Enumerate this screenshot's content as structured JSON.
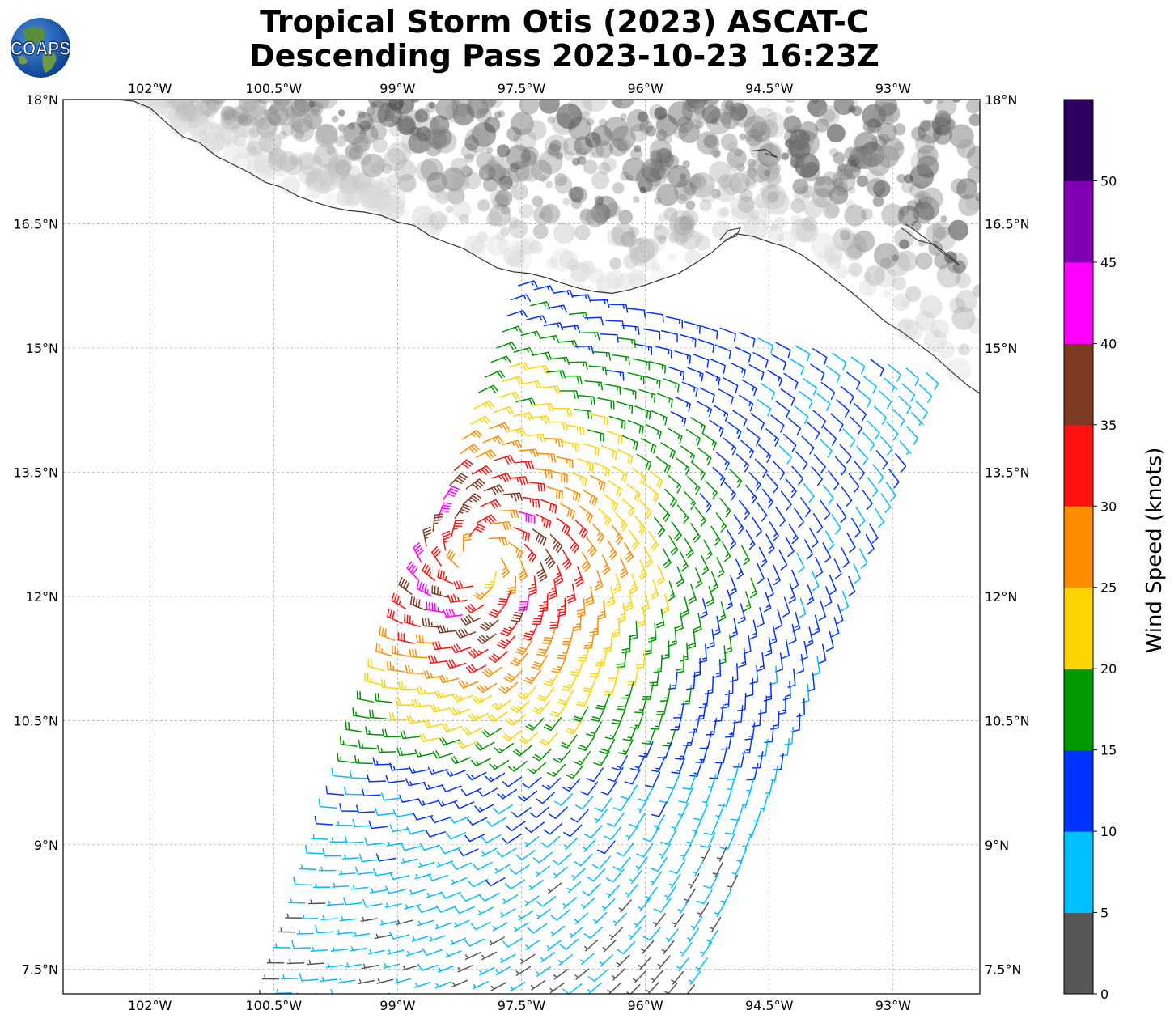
{
  "title": {
    "line1": "Tropical Storm Otis (2023) ASCAT-C",
    "line2": "Descending Pass 2023-10-23 16:23Z"
  },
  "logo": {
    "text": "COAPS",
    "icon": "globe-logo-icon"
  },
  "map": {
    "lon_ticks": [
      "102°W",
      "100.5°W",
      "99°W",
      "97.5°W",
      "96°W",
      "94.5°W",
      "93°W"
    ],
    "lat_ticks": [
      "18°N",
      "16.5°N",
      "15°N",
      "13.5°N",
      "12°N",
      "10.5°N",
      "9°N",
      "7.5°N"
    ],
    "extent": {
      "lon_min": -103.05,
      "lon_max": -91.95,
      "lat_min": 7.2,
      "lat_max": 18.0
    },
    "gridlines": true,
    "storm_center": {
      "lon": -98.0,
      "lat": 12.45
    }
  },
  "colorbar": {
    "label": "Wind Speed (knots)",
    "ticks": [
      "0",
      "5",
      "10",
      "15",
      "20",
      "25",
      "30",
      "35",
      "40",
      "45",
      "50"
    ],
    "bins": [
      {
        "from": 0,
        "to": 5,
        "color": "#575757"
      },
      {
        "from": 5,
        "to": 10,
        "color": "#00bfff"
      },
      {
        "from": 10,
        "to": 15,
        "color": "#0033ff"
      },
      {
        "from": 15,
        "to": 20,
        "color": "#009900"
      },
      {
        "from": 20,
        "to": 25,
        "color": "#ffd400"
      },
      {
        "from": 25,
        "to": 30,
        "color": "#ff8c00"
      },
      {
        "from": 30,
        "to": 35,
        "color": "#ff1111"
      },
      {
        "from": 35,
        "to": 40,
        "color": "#7f3a24"
      },
      {
        "from": 40,
        "to": 45,
        "color": "#ff00ff"
      },
      {
        "from": 45,
        "to": 50,
        "color": "#8000b3"
      },
      {
        "from": 50,
        "to": 55,
        "color": "#2e0060"
      }
    ]
  }
}
